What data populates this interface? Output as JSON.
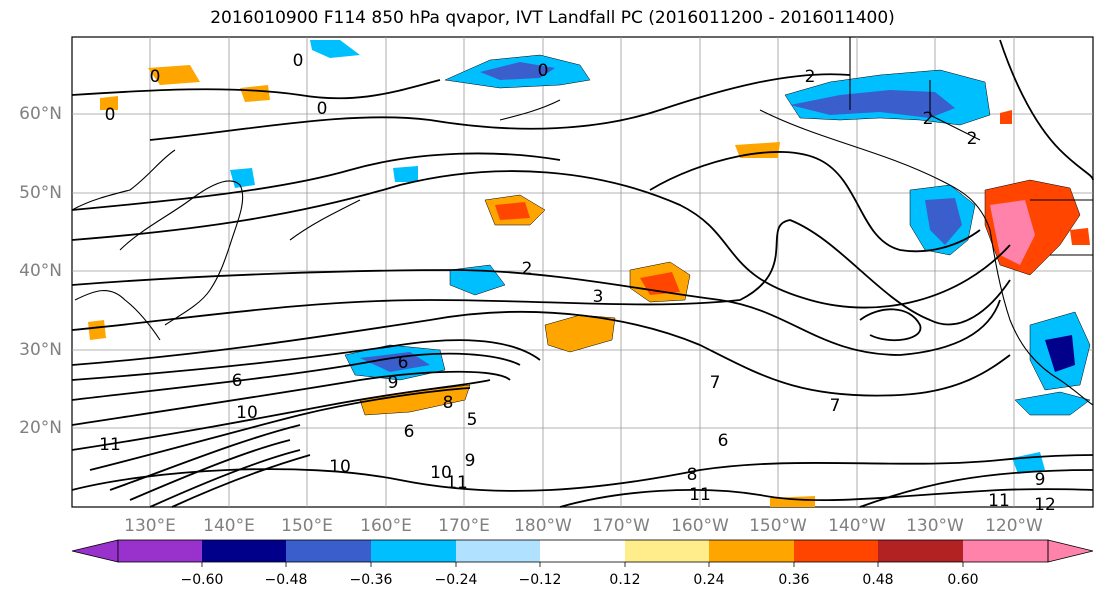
{
  "title": "2016010900 F114 850 hPa qvapor, IVT Landfall PC (2016011200 - 2016011400)",
  "lat_labels": [
    "60°N",
    "50°N",
    "40°N",
    "30°N",
    "20°N"
  ],
  "lon_labels": [
    "130°E",
    "140°E",
    "150°E",
    "160°E",
    "170°E",
    "180°W",
    "170°W",
    "160°W",
    "150°W",
    "140°W",
    "130°W",
    "120°W"
  ],
  "colorbar": {
    "ticks": [
      "−0.60",
      "−0.48",
      "−0.36",
      "−0.24",
      "−0.12",
      "0.12",
      "0.24",
      "0.36",
      "0.48",
      "0.60"
    ],
    "colors": [
      "#9932cc",
      "#00008b",
      "#3a5fcd",
      "#00bfff",
      "#b0e2ff",
      "#ffffff",
      "#ffec8b",
      "#ffa500",
      "#ff4500",
      "#b22222",
      "#ff82ab"
    ]
  },
  "contour_labels": [
    "0",
    "0",
    "0",
    "0",
    "0",
    "2",
    "2",
    "2",
    "2",
    "3",
    "5",
    "6",
    "6",
    "6",
    "6",
    "7",
    "7",
    "8",
    "8",
    "9",
    "9",
    "9",
    "10",
    "10",
    "10",
    "11",
    "11",
    "11",
    "11",
    "12"
  ],
  "anomaly_colors": {
    "blue_light": "#b0e2ff",
    "blue_sky": "#00bfff",
    "blue_mid": "#3a5fcd",
    "blue_dark": "#00008b",
    "yellow": "#ffec8b",
    "orange": "#ffa500",
    "red_orange": "#ff4500",
    "dark_red": "#b22222",
    "pink": "#ff82ab"
  }
}
